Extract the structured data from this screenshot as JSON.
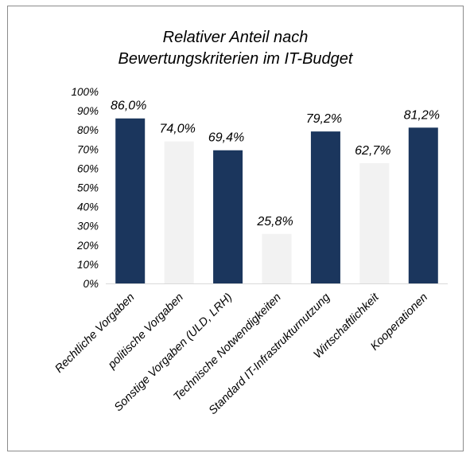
{
  "chart_data": {
    "type": "bar",
    "title_line1": "Relativer Anteil nach",
    "title_line2": "Bewertungskriterien im IT-Budget",
    "categories": [
      "Rechtliche Vorgaben",
      "politische Vorgaben",
      "Sonstige Vorgaben (ULD, LRH)",
      "Technische Notwendigkeiten",
      "Standard IT-Infrastrukturnutzung",
      "Wirtschaftlichkeit",
      "Kooperationen"
    ],
    "values": [
      86.0,
      74.0,
      69.4,
      25.8,
      79.2,
      62.7,
      81.2
    ],
    "data_labels": [
      "86,0%",
      "74,0%",
      "69,4%",
      "25,8%",
      "79,2%",
      "62,7%",
      "81,2%"
    ],
    "bar_colors": [
      "#1b365d",
      "#f2f2f2",
      "#1b365d",
      "#f2f2f2",
      "#1b365d",
      "#f2f2f2",
      "#1b365d"
    ],
    "y_ticks": [
      "0%",
      "10%",
      "20%",
      "30%",
      "40%",
      "50%",
      "60%",
      "70%",
      "80%",
      "90%",
      "100%"
    ],
    "ylim": [
      0,
      100
    ],
    "xlabel": "",
    "ylabel": "",
    "grid": false
  }
}
